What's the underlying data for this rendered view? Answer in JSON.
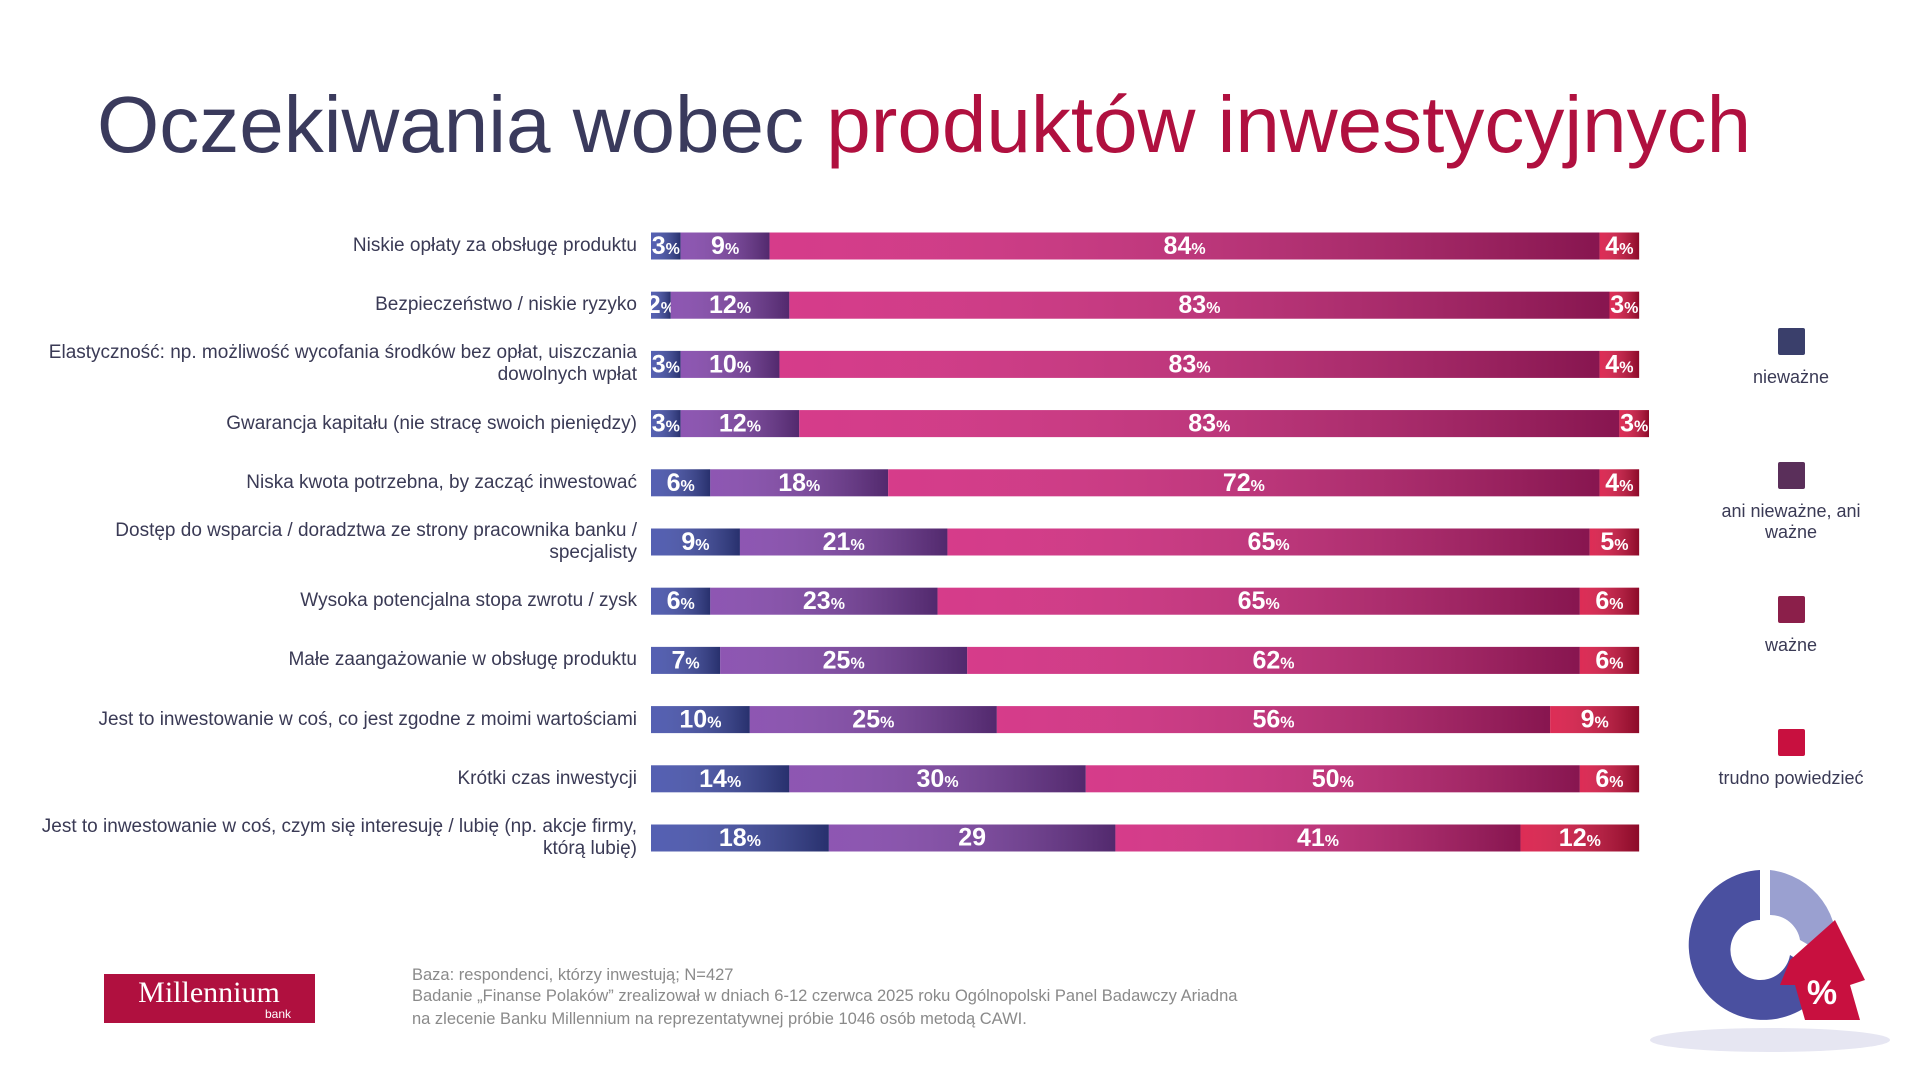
{
  "chart_data": {
    "type": "stacked-bar-horizontal",
    "title": "Oczekiwania wobec",
    "title_highlight": "produktów inwestycyjnych",
    "categories": [
      "Niskie opłaty za obsługę produktu",
      "Bezpieczeństwo / niskie ryzyko",
      "Elastyczność: np. możliwość wycofania środków bez opłat, uiszczania dowolnych wpłat",
      "Gwarancja kapitału (nie stracę swoich pieniędzy)",
      "Niska kwota potrzebna, by zacząć inwestować",
      "Dostęp do wsparcia / doradztwa ze strony pracownika banku / specjalisty",
      "Wysoka potencjalna stopa zwrotu / zysk",
      "Małe zaangażowanie w obsługę produktu",
      "Jest to inwestowanie w coś, co jest zgodne z moimi wartościami",
      "Krótki czas inwestycji",
      "Jest to inwestowanie w coś, czym się interesuję / lubię (np. akcje firmy, którą lubię)"
    ],
    "series": [
      {
        "name": "nieważne",
        "color": "#3d4aa8",
        "values": [
          3,
          2,
          3,
          3,
          6,
          9,
          6,
          7,
          10,
          14,
          18
        ],
        "value_labels": [
          "3%",
          "2%",
          "3%",
          "3%",
          "6%",
          "9%",
          "6%",
          "7%",
          "10%",
          "14%",
          "18%"
        ]
      },
      {
        "name": "ani nieważne, ani ważne",
        "color": "#7e3fa8",
        "values": [
          9,
          12,
          10,
          12,
          18,
          21,
          23,
          25,
          25,
          30,
          29
        ],
        "value_labels": [
          "9%",
          "12%",
          "10%",
          "12%",
          "18%",
          "21%",
          "23%",
          "25%",
          "25%",
          "30%",
          "29"
        ]
      },
      {
        "name": "ważne",
        "color": "#d0217a",
        "values": [
          84,
          83,
          83,
          83,
          72,
          65,
          65,
          62,
          56,
          50,
          41
        ],
        "value_labels": [
          "84%",
          "83%",
          "83%",
          "83%",
          "72%",
          "65%",
          "65%",
          "62%",
          "56%",
          "50%",
          "41%"
        ]
      },
      {
        "name": "trudno powiedzieć",
        "color": "#d8103f",
        "values": [
          4,
          3,
          4,
          3,
          4,
          5,
          6,
          6,
          9,
          6,
          12
        ],
        "value_labels": [
          "4%",
          "3%",
          "4%",
          "3%",
          "4%",
          "5%",
          "6%",
          "6%",
          "9%",
          "6%",
          "12%"
        ]
      }
    ],
    "legend_colors": [
      "#3a3f6b",
      "#5a2f5a",
      "#8b1f4a",
      "#c8103f"
    ],
    "legend": "right"
  },
  "notes": [
    "Baza: respondenci, którzy inwestują; N=427",
    "Badanie „Finanse Polaków” zrealizował w dniach 6-12 czerwca 2025 roku Ogólnopolski Panel Badawczy Ariadna",
    "na zlecenie Banku Millennium na reprezentatywnej próbie 1046 osób metodą CAWI."
  ],
  "logo": {
    "name": "Millennium",
    "sub": "bank"
  }
}
